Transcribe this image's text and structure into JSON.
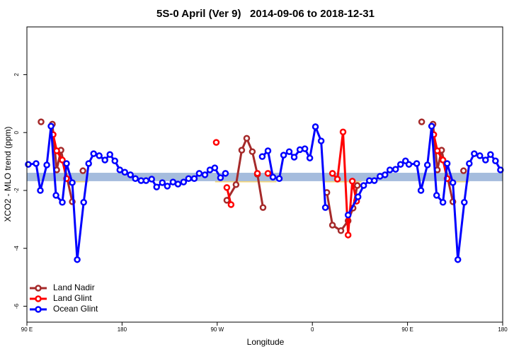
{
  "chart_data": {
    "type": "line",
    "title": "5S-0 April (Ver 9)   2014-09-06 to 2018-12-31",
    "x_label": "Longitude",
    "y_label": "XCO2 - MLO trend (ppm)",
    "xlim": [
      90,
      540
    ],
    "ylim": [
      -6.55,
      3.65
    ],
    "xticks": [
      {
        "value": 90,
        "label": "90 E"
      },
      {
        "value": 180,
        "label": "180"
      },
      {
        "value": 270,
        "label": "90 W"
      },
      {
        "value": 360,
        "label": "0"
      },
      {
        "value": 450,
        "label": "90 E"
      },
      {
        "value": 540,
        "label": "180"
      }
    ],
    "yticks": [
      2,
      0,
      -2,
      -4,
      -6
    ],
    "legend": "bottom-left",
    "bands": [
      {
        "x": [
          131.6,
          148.4
        ],
        "y": [
          -1.72,
          -1.45
        ],
        "color": "#f5d77a"
      },
      {
        "x": [
          268,
          326
        ],
        "y": [
          -1.72,
          -1.45
        ],
        "color": "#f5d77a"
      },
      {
        "x": [
          369.6,
          406.5
        ],
        "y": [
          -1.72,
          -1.45
        ],
        "color": "#f5d77a"
      },
      {
        "x": [
          491.6,
          508.4
        ],
        "y": [
          -1.72,
          -1.45
        ],
        "color": "#f5d77a"
      },
      {
        "x": [
          90,
          540
        ],
        "y": [
          -1.68,
          -1.39
        ],
        "color": "#a5bcdd"
      }
    ],
    "series": [
      {
        "name": "Land Nadir",
        "color": "#a52a2a",
        "x": [
          103.4,
          null,
          114.1,
          118.2,
          122.2,
          132.9,
          null,
          143,
          null,
          279.1,
          287.8,
          293.2,
          297.9,
          303.2,
          308,
          313.3,
          null,
          373.7,
          379,
          387,
          393.8,
          398.5,
          402.5,
          null,
          463.4,
          null,
          474.1,
          478.2,
          482.2,
          492.9,
          null,
          503
        ],
        "values": [
          0.37,
          null,
          0.29,
          -1.29,
          -0.61,
          -2.39,
          null,
          -1.32,
          null,
          -2.34,
          -1.8,
          -0.61,
          -0.2,
          -0.66,
          -1.44,
          -2.59,
          null,
          -2.07,
          -3.2,
          -3.39,
          -3.05,
          -2.61,
          -1.83,
          null,
          0.37,
          null,
          0.29,
          -1.29,
          -0.61,
          -2.39,
          null,
          -1.32
        ]
      },
      {
        "name": "Land Glint",
        "color": "#ff0000",
        "x": [
          114.8,
          118.2,
          123.5,
          127.5,
          null,
          269.1,
          null,
          279.1,
          283.1,
          null,
          308,
          null,
          318,
          null,
          379,
          383.7,
          389,
          393.8,
          397.8,
          401.8,
          null,
          474.8,
          478.2,
          483.5,
          487.5
        ],
        "values": [
          -0.07,
          -0.63,
          -0.95,
          -1.59,
          null,
          -0.34,
          null,
          -1.9,
          -2.49,
          null,
          -1.41,
          null,
          -1.41,
          null,
          -1.41,
          -1.61,
          0.02,
          -3.54,
          -1.68,
          -2.37,
          null,
          -0.07,
          -0.63,
          -0.95,
          -1.59
        ]
      },
      {
        "name": "Ocean Glint",
        "color": "#0000ff",
        "x": [
          91.3,
          98.7,
          102.7,
          108.8,
          112.8,
          117.5,
          123.5,
          127.5,
          132.9,
          137.6,
          143.7,
          148.4,
          153.1,
          158.4,
          163.8,
          168.5,
          173.2,
          177.9,
          182.6,
          187.9,
          192.6,
          198,
          202.7,
          208,
          212.7,
          218.1,
          222.8,
          228.2,
          232.9,
          238.2,
          242.9,
          248.3,
          253,
          258.4,
          263.1,
          267.7,
          273.1,
          277.8,
          null,
          312.6,
          318,
          322.7,
          328.7,
          332.8,
          338.1,
          342.8,
          348.2,
          352.9,
          357.6,
          362.9,
          368.3,
          372.3,
          null,
          393.8,
          403.2,
          408.5,
          413.9,
          418.6,
          424,
          428.7,
          433.3,
          438.7,
          443.4,
          448.1,
          451.3,
          458.7,
          462.7,
          468.8,
          472.8,
          477.5,
          483.5,
          487.5,
          492.9,
          497.6,
          503.7,
          508.4,
          513.1,
          518.4,
          523.8,
          528.5,
          533.2,
          537.9
        ],
        "values": [
          -1.1,
          -1.07,
          -2.0,
          -1.12,
          0.22,
          -2.17,
          -2.41,
          -1.07,
          -1.73,
          -4.39,
          -2.41,
          -1.07,
          -0.73,
          -0.8,
          -0.95,
          -0.76,
          -0.98,
          -1.29,
          -1.37,
          -1.46,
          -1.59,
          -1.66,
          -1.66,
          -1.61,
          -1.88,
          -1.73,
          -1.85,
          -1.71,
          -1.78,
          -1.71,
          -1.59,
          -1.59,
          -1.41,
          -1.46,
          -1.29,
          -1.22,
          -1.56,
          -1.41,
          null,
          -0.83,
          -0.63,
          -1.54,
          -1.59,
          -0.78,
          -0.66,
          -0.85,
          -0.59,
          -0.56,
          -0.88,
          0.2,
          -0.29,
          -2.59,
          null,
          -2.85,
          -2.22,
          -1.83,
          -1.66,
          -1.66,
          -1.51,
          -1.46,
          -1.29,
          -1.27,
          -1.1,
          -0.98,
          -1.1,
          -1.07,
          -2.0,
          -1.12,
          0.22,
          -2.17,
          -2.41,
          -1.07,
          -1.73,
          -4.39,
          -2.41,
          -1.07,
          -0.73,
          -0.8,
          -0.95,
          -0.76,
          -0.98,
          -1.29
        ]
      }
    ]
  }
}
